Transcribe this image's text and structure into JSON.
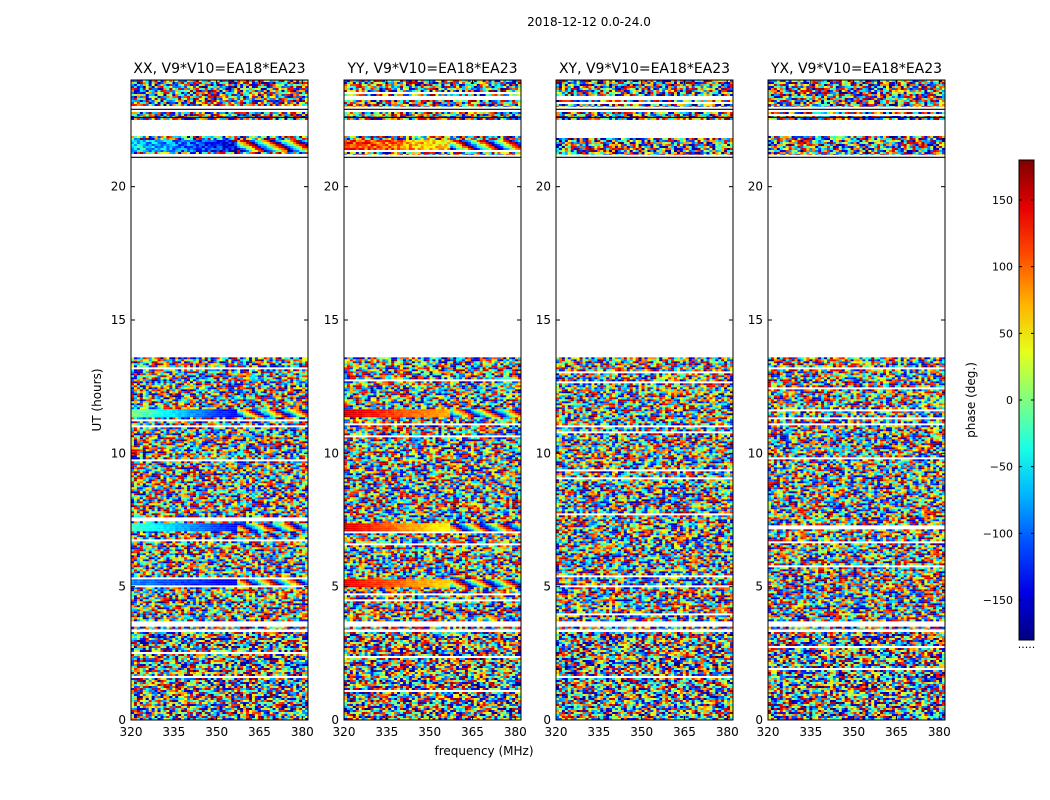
{
  "figure_title": "2018-12-12 0.0-24.0",
  "chart_data": {
    "type": "heatmap",
    "title": "2018-12-12 0.0-24.0",
    "xlabel": "frequency (MHz)",
    "ylabel": "UT (hours)",
    "xlim": [
      320,
      382
    ],
    "ylim": [
      0,
      24
    ],
    "xticks": [
      "320",
      "335",
      "350",
      "365",
      "380"
    ],
    "yticks": [
      "0",
      "5",
      "10",
      "15",
      "20"
    ],
    "panels": [
      {
        "key": "xx",
        "title": "XX, V9*V10=EA18*EA23"
      },
      {
        "key": "yy",
        "title": "YY, V9*V10=EA18*EA23"
      },
      {
        "key": "xy",
        "title": "XY, V9*V10=EA18*EA23"
      },
      {
        "key": "yx",
        "title": "YX, V9*V10=EA18*EA23"
      }
    ],
    "data_intervals_ut_hours": [
      [
        0.0,
        3.3
      ],
      [
        3.4,
        3.5
      ],
      [
        3.7,
        13.6
      ],
      [
        21.2,
        21.9
      ],
      [
        22.5,
        22.8
      ],
      [
        23.0,
        24.0
      ]
    ],
    "colorbar": {
      "label": "phase (deg.)",
      "range": [
        -180,
        180
      ],
      "ticks": [
        "150",
        "100",
        "50",
        "0",
        "−50",
        "−100",
        "−150"
      ],
      "colormap": "jet",
      "footnote": "....."
    }
  }
}
